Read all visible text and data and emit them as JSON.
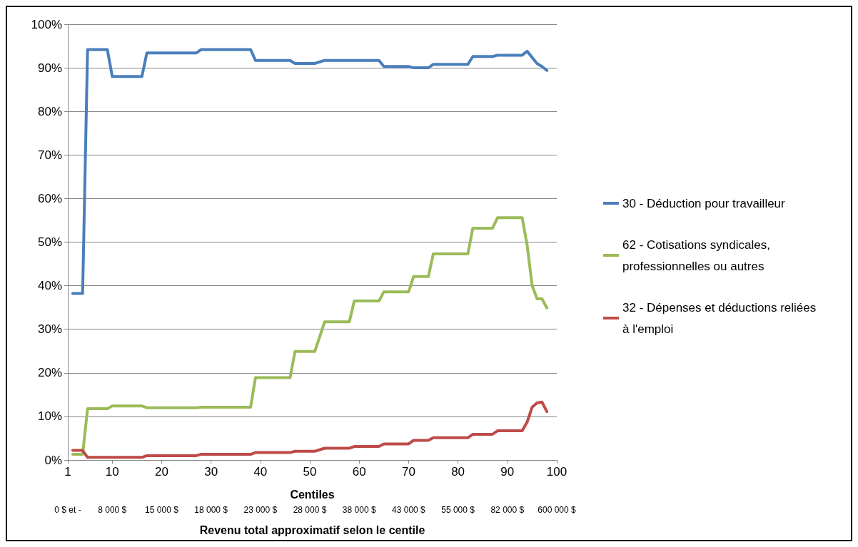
{
  "chart_data": {
    "type": "line",
    "xlabel": "Centiles",
    "x2label": "Revenu total approximatif selon le centile",
    "xlim": [
      1,
      100
    ],
    "xticks": [
      1,
      10,
      20,
      30,
      40,
      50,
      60,
      70,
      80,
      90,
      100
    ],
    "annotations": [
      "0 $ et -",
      "8 000 $",
      "15 000 $",
      "18 000 $",
      "23 000 $",
      "28 000 $",
      "38 000 $",
      "43 000 $",
      "55 000 $",
      "82 000 $",
      "600 000 $"
    ],
    "ylim": [
      0,
      100
    ],
    "yticks": [
      {
        "value": 0,
        "label": "0%"
      },
      {
        "value": 10,
        "label": "10%"
      },
      {
        "value": 20,
        "label": "20%"
      },
      {
        "value": 30,
        "label": "30%"
      },
      {
        "value": 40,
        "label": "40%"
      },
      {
        "value": 50,
        "label": "50%"
      },
      {
        "value": 60,
        "label": "60%"
      },
      {
        "value": 70,
        "label": "70%"
      },
      {
        "value": 80,
        "label": "80%"
      },
      {
        "value": 90,
        "label": "90%"
      },
      {
        "value": 100,
        "label": "100%"
      }
    ],
    "grid": "y",
    "legend": "right",
    "marker": "none",
    "line_style": "solid",
    "series": [
      {
        "name": "30 - Déduction pour travailleur",
        "color": "#4a7ebb",
        "x": [
          2,
          4,
          5,
          9,
          10,
          16,
          17,
          27,
          28,
          38,
          39,
          46,
          47,
          51,
          53,
          64,
          65,
          70,
          71,
          74,
          75,
          82,
          83,
          87,
          88,
          93,
          94,
          96,
          97,
          98
        ],
        "values": [
          38.2,
          38.2,
          94.2,
          94.2,
          88,
          88,
          93.4,
          93.4,
          94.2,
          94.2,
          91.7,
          91.7,
          91,
          91,
          91.7,
          91.7,
          90.3,
          90.3,
          90,
          90,
          90.8,
          90.8,
          92.6,
          92.6,
          92.9,
          92.9,
          93.8,
          91,
          90.3,
          89.4
        ]
      },
      {
        "name": "62 - Cotisations syndicales, professionnelles ou autres",
        "color": "#9bbb59",
        "x": [
          2,
          4,
          5,
          9,
          10,
          16,
          17,
          27,
          28,
          38,
          39,
          46,
          47,
          51,
          53,
          58,
          59,
          64,
          65,
          70,
          71,
          74,
          75,
          82,
          83,
          87,
          88,
          93,
          94,
          95,
          96,
          97,
          98
        ],
        "values": [
          1.3,
          1.3,
          11.8,
          11.8,
          12.4,
          12.4,
          12,
          12,
          12.1,
          12.1,
          18.9,
          18.9,
          24.9,
          24.9,
          31.7,
          31.7,
          36.5,
          36.5,
          38.6,
          38.6,
          42.1,
          42.1,
          47.3,
          47.3,
          53.2,
          53.2,
          55.6,
          55.6,
          49.3,
          40.1,
          37,
          37,
          34.9
        ]
      },
      {
        "name": "32 - Dépenses et déductions reliées à l'emploi",
        "color": "#be4b48",
        "x": [
          2,
          4,
          5,
          16,
          17,
          27,
          28,
          38,
          39,
          46,
          47,
          51,
          53,
          58,
          59,
          64,
          65,
          70,
          71,
          74,
          75,
          82,
          83,
          87,
          88,
          93,
          94,
          95,
          96,
          97,
          98
        ],
        "values": [
          2.2,
          2.2,
          0.6,
          0.6,
          1,
          1,
          1.3,
          1.3,
          1.7,
          1.7,
          2,
          2,
          2.7,
          2.7,
          3.1,
          3.1,
          3.7,
          3.7,
          4.5,
          4.5,
          5.1,
          5.1,
          5.9,
          5.9,
          6.7,
          6.7,
          8.7,
          12.1,
          13.1,
          13.3,
          11.1
        ]
      }
    ]
  }
}
